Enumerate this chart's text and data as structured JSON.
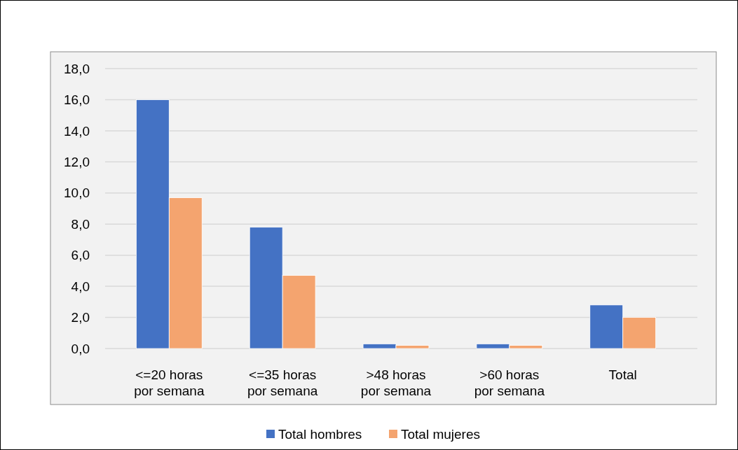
{
  "chart_data": {
    "type": "bar",
    "categories": [
      "<=20 horas por semana",
      "<=35 horas por semana",
      ">48 horas por semana",
      ">60 horas por semana",
      "Total"
    ],
    "series": [
      {
        "name": "Total hombres",
        "color": "#4472c4",
        "values": [
          16.0,
          7.8,
          0.3,
          0.3,
          2.8
        ]
      },
      {
        "name": "Total mujeres",
        "color": "#f4a46f",
        "values": [
          9.7,
          4.7,
          0.2,
          0.2,
          2.0
        ]
      }
    ],
    "ylim": [
      0,
      18
    ],
    "yticks": [
      {
        "value": 0,
        "label": "0,0"
      },
      {
        "value": 2,
        "label": "2,0"
      },
      {
        "value": 4,
        "label": "4,0"
      },
      {
        "value": 6,
        "label": "6,0"
      },
      {
        "value": 8,
        "label": "8,0"
      },
      {
        "value": 10,
        "label": "10,0"
      },
      {
        "value": 12,
        "label": "12,0"
      },
      {
        "value": 14,
        "label": "14,0"
      },
      {
        "value": 16,
        "label": "16,0"
      },
      {
        "value": 18,
        "label": "18,0"
      }
    ],
    "grid": "y",
    "legend": "bottom"
  }
}
